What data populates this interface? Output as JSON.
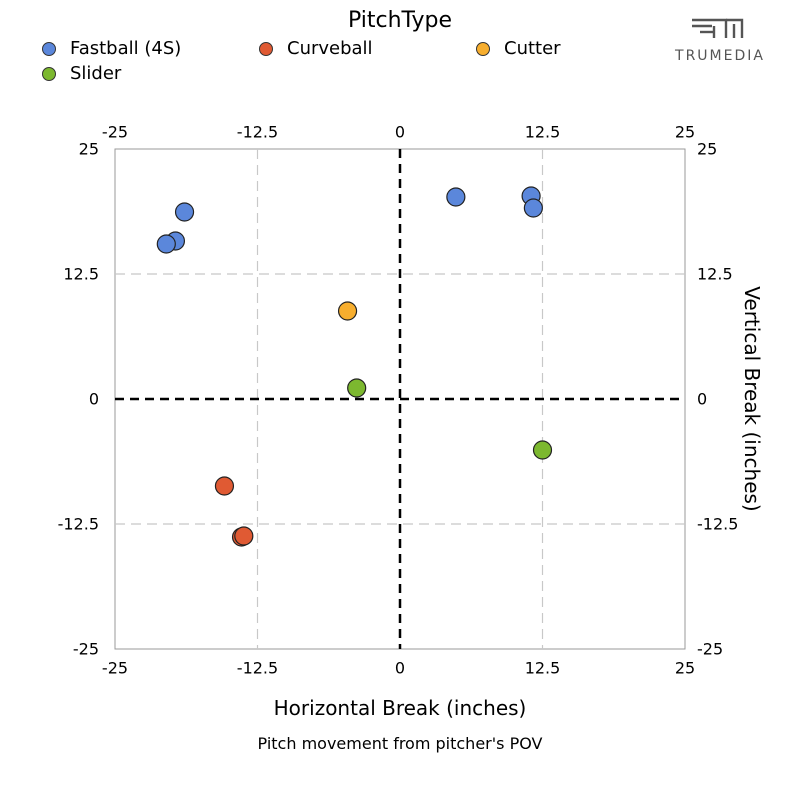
{
  "legend": {
    "title": "PitchType",
    "items": [
      {
        "label": "Fastball (4S)",
        "color": "#5b87db"
      },
      {
        "label": "Curveball",
        "color": "#e05a33"
      },
      {
        "label": "Cutter",
        "color": "#f7ae2e"
      },
      {
        "label": "Slider",
        "color": "#7cb82f"
      }
    ]
  },
  "brand": {
    "text": "TRUMEDIA",
    "icon": "trumedia-logo-icon"
  },
  "chart_data": {
    "type": "scatter",
    "xlabel": "Horizontal Break (inches)",
    "ylabel": "Vertical Break (inches)",
    "subtitle": "Pitch movement from pitcher's POV",
    "xlim": [
      -25,
      25
    ],
    "ylim": [
      -25,
      25
    ],
    "xticks": [
      -25,
      -12.5,
      0,
      12.5,
      25
    ],
    "yticks": [
      -25,
      -12.5,
      0,
      12.5,
      25
    ],
    "xtick_labels": [
      "-25",
      "-12.5",
      "0",
      "12.5",
      "25"
    ],
    "ytick_labels": [
      "-25",
      "-12.5",
      "0",
      "12.5",
      "25"
    ],
    "grid": true,
    "series": [
      {
        "name": "Fastball (4S)",
        "color": "#5b87db",
        "points": [
          [
            -18.9,
            18.7
          ],
          [
            -19.7,
            15.8
          ],
          [
            -20.5,
            15.5
          ],
          [
            4.9,
            20.2
          ],
          [
            11.5,
            20.3
          ],
          [
            11.7,
            19.1
          ]
        ]
      },
      {
        "name": "Curveball",
        "color": "#e05a33",
        "points": [
          [
            -15.4,
            -8.7
          ],
          [
            -13.9,
            -13.8
          ],
          [
            -13.7,
            -13.7
          ]
        ]
      },
      {
        "name": "Cutter",
        "color": "#f7ae2e",
        "points": [
          [
            -4.6,
            8.8
          ]
        ]
      },
      {
        "name": "Slider",
        "color": "#7cb82f",
        "points": [
          [
            -3.8,
            1.1
          ],
          [
            12.5,
            -5.1
          ]
        ]
      }
    ]
  }
}
